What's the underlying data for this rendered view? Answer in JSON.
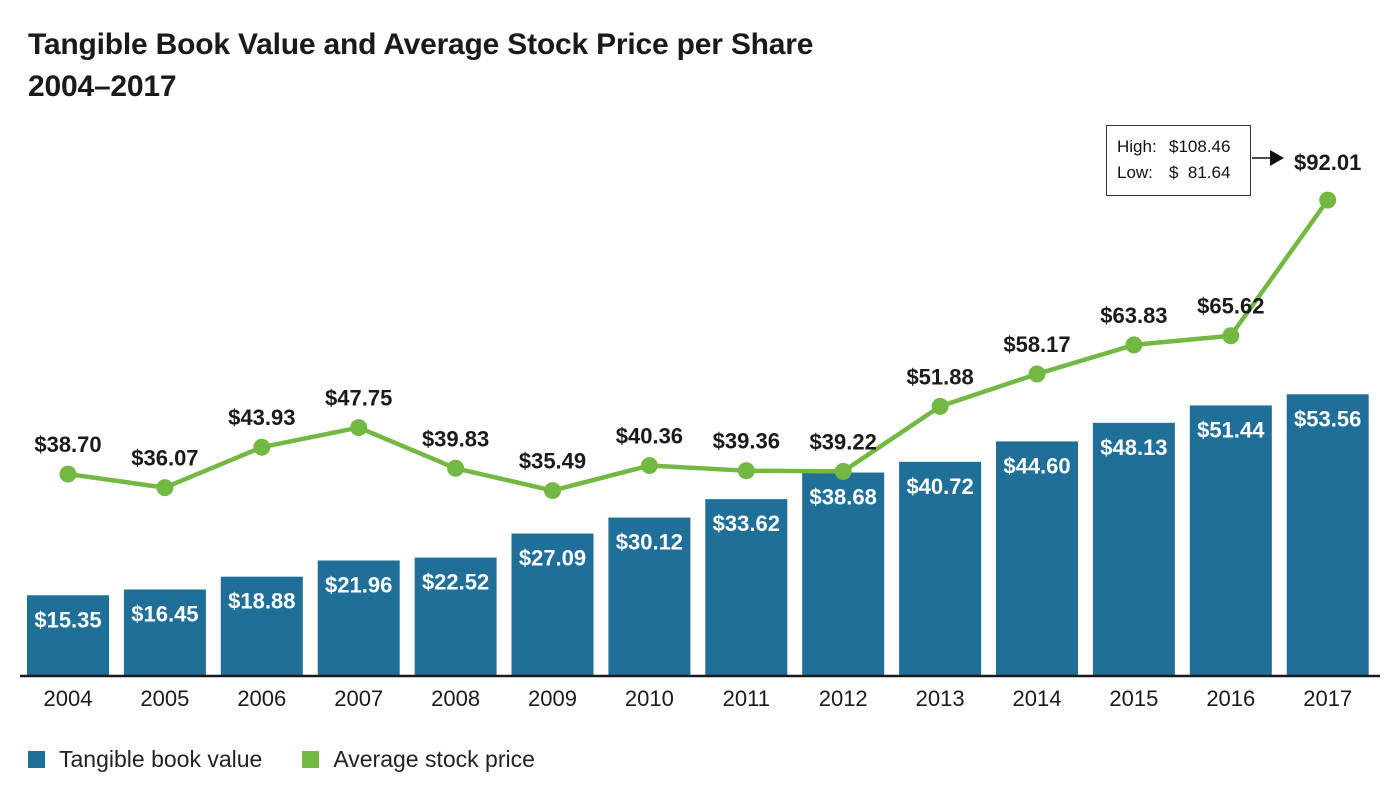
{
  "title_line1": "Tangible Book Value and Average Stock Price per Share",
  "title_line2": "2004–2017",
  "colors": {
    "bar": "#1f6f99",
    "line": "#72b843",
    "axis": "#1a1a1a",
    "text": "#1a1a1a"
  },
  "chart_data": {
    "type": "bar",
    "categories": [
      "2004",
      "2005",
      "2006",
      "2007",
      "2008",
      "2009",
      "2010",
      "2011",
      "2012",
      "2013",
      "2014",
      "2015",
      "2016",
      "2017"
    ],
    "series": [
      {
        "name": "Tangible book value",
        "type": "bar",
        "values": [
          15.35,
          16.45,
          18.88,
          21.96,
          22.52,
          27.09,
          30.12,
          33.62,
          38.68,
          40.72,
          44.6,
          48.13,
          51.44,
          53.56
        ],
        "labels": [
          "$15.35",
          "$16.45",
          "$18.88",
          "$21.96",
          "$22.52",
          "$27.09",
          "$30.12",
          "$33.62",
          "$38.68",
          "$40.72",
          "$44.60",
          "$48.13",
          "$51.44",
          "$53.56"
        ]
      },
      {
        "name": "Average stock price",
        "type": "line",
        "values": [
          38.7,
          36.07,
          43.93,
          47.75,
          39.83,
          35.49,
          40.36,
          39.36,
          39.22,
          51.88,
          58.17,
          63.83,
          65.62,
          92.01
        ],
        "labels": [
          "$38.70",
          "$36.07",
          "$43.93",
          "$47.75",
          "$39.83",
          "$35.49",
          "$40.36",
          "$39.36",
          "$39.22",
          "$51.88",
          "$58.17",
          "$63.83",
          "$65.62",
          "$92.01"
        ]
      }
    ],
    "legend": [
      "Tangible book value",
      "Average stock price"
    ],
    "legend_position": "bottom-left",
    "grid": false,
    "annotation": {
      "category": "2017",
      "high_label": "High:",
      "high_value": "$108.46",
      "low_label": "Low:",
      "low_value": "$  81.64"
    }
  }
}
